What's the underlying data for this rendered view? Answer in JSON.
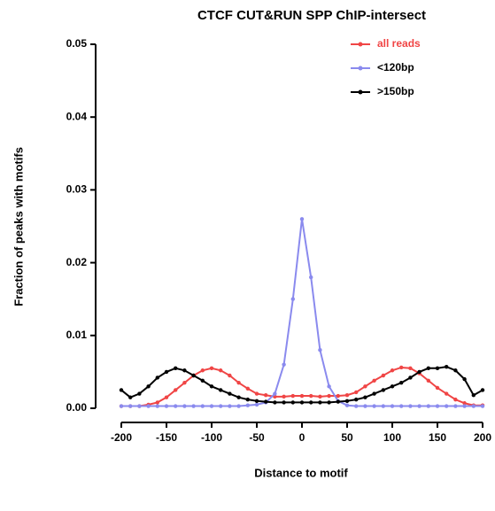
{
  "chart_data": {
    "type": "line",
    "title": "CTCF CUT&RUN SPP ChIP-intersect",
    "x_label": "Distance to motif",
    "y_label": "Fraction of peaks with motifs",
    "x": [
      -200,
      -190,
      -180,
      -170,
      -160,
      -150,
      -140,
      -130,
      -120,
      -110,
      -100,
      -90,
      -80,
      -70,
      -60,
      -50,
      -40,
      -30,
      -20,
      -10,
      0,
      10,
      20,
      30,
      40,
      50,
      60,
      70,
      80,
      90,
      100,
      110,
      120,
      130,
      140,
      150,
      160,
      170,
      180,
      190,
      200
    ],
    "series": [
      {
        "name": "all reads",
        "color": "#f04545",
        "values": [
          0.0003,
          0.0003,
          0.0003,
          0.0005,
          0.0008,
          0.0015,
          0.0025,
          0.0035,
          0.0045,
          0.0052,
          0.0055,
          0.0052,
          0.0045,
          0.0035,
          0.0027,
          0.002,
          0.0018,
          0.0016,
          0.0016,
          0.0017,
          0.0017,
          0.0017,
          0.0016,
          0.0017,
          0.0017,
          0.0018,
          0.0022,
          0.003,
          0.0038,
          0.0045,
          0.0052,
          0.0056,
          0.0055,
          0.0048,
          0.0038,
          0.0028,
          0.002,
          0.0012,
          0.0007,
          0.0004,
          0.0004
        ]
      },
      {
        "name": "<120bp",
        "color": "#8a8aee",
        "values": [
          0.0003,
          0.0003,
          0.0003,
          0.0003,
          0.0003,
          0.0003,
          0.0003,
          0.0003,
          0.0003,
          0.0003,
          0.0003,
          0.0003,
          0.0003,
          0.0003,
          0.0004,
          0.0005,
          0.0008,
          0.002,
          0.006,
          0.015,
          0.026,
          0.018,
          0.008,
          0.003,
          0.001,
          0.0004,
          0.0003,
          0.0003,
          0.0003,
          0.0003,
          0.0003,
          0.0003,
          0.0003,
          0.0003,
          0.0003,
          0.0003,
          0.0003,
          0.0003,
          0.0003,
          0.0003,
          0.0003
        ]
      },
      {
        "name": ">150bp",
        "color": "#000000",
        "values": [
          0.0025,
          0.0015,
          0.002,
          0.003,
          0.0042,
          0.005,
          0.0055,
          0.0052,
          0.0045,
          0.0038,
          0.003,
          0.0025,
          0.002,
          0.0015,
          0.0012,
          0.001,
          0.0009,
          0.0008,
          0.0008,
          0.0008,
          0.0008,
          0.0008,
          0.0008,
          0.0008,
          0.0009,
          0.001,
          0.0012,
          0.0015,
          0.002,
          0.0025,
          0.003,
          0.0035,
          0.0042,
          0.005,
          0.0055,
          0.0055,
          0.0057,
          0.0052,
          0.004,
          0.0018,
          0.0025
        ]
      }
    ],
    "xlim": [
      -200,
      200
    ],
    "xticks": [
      -200,
      -150,
      -100,
      -50,
      0,
      50,
      100,
      150,
      200
    ],
    "ylim": [
      0,
      0.05
    ],
    "yticks": [
      {
        "value": 0,
        "label": "0.00"
      },
      {
        "value": 0.01,
        "label": "0.01"
      },
      {
        "value": 0.02,
        "label": "0.02"
      },
      {
        "value": 0.03,
        "label": "0.03"
      },
      {
        "value": 0.04,
        "label": "0.04"
      },
      {
        "value": 0.05,
        "label": "0.05"
      }
    ],
    "legend": "top-right",
    "grid": false
  }
}
